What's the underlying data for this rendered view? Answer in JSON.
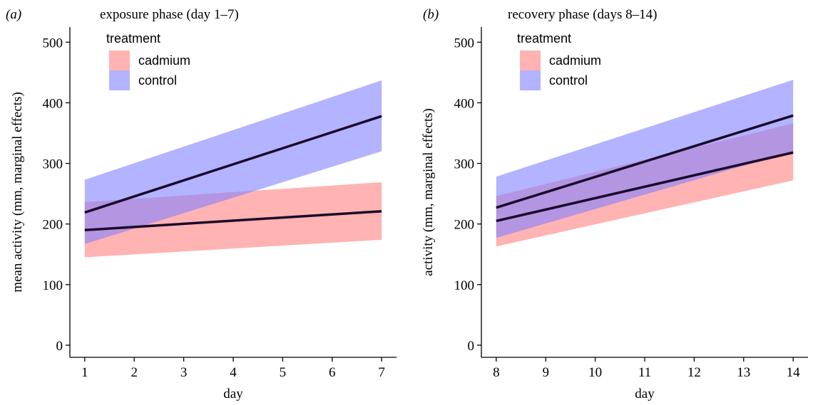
{
  "colors": {
    "cadmium_band": "#ff8080",
    "control_band": "#8080ff",
    "line": "#1a0a2a",
    "axis": "#000000"
  },
  "chart_data": [
    {
      "type": "line",
      "panel_letter": "(a)",
      "title": "exposure phase (day 1–7)",
      "xlabel": "day",
      "ylabel": "mean activity (mm, marginal effects)",
      "xlim": [
        0.7,
        7.3
      ],
      "ylim": [
        -20,
        525
      ],
      "x_ticks": [
        1,
        2,
        3,
        4,
        5,
        6,
        7
      ],
      "y_ticks": [
        0,
        100,
        200,
        300,
        400,
        500
      ],
      "grid": false,
      "legend": {
        "title": "treatment",
        "placement": "top-left"
      },
      "series": [
        {
          "name": "cadmium",
          "color": "#ff8080",
          "x": [
            1,
            7
          ],
          "y": [
            190,
            221
          ],
          "lower": [
            145,
            174
          ],
          "upper": [
            236,
            269
          ]
        },
        {
          "name": "control",
          "color": "#8080ff",
          "x": [
            1,
            7
          ],
          "y": [
            219,
            378
          ],
          "lower": [
            167,
            320
          ],
          "upper": [
            273,
            437
          ]
        }
      ]
    },
    {
      "type": "line",
      "panel_letter": "(b)",
      "title": "recovery phase (days 8–14)",
      "xlabel": "day",
      "ylabel": "activity (mm, marginal effects)",
      "xlim": [
        7.7,
        14.3
      ],
      "ylim": [
        -20,
        525
      ],
      "x_ticks": [
        8,
        9,
        10,
        11,
        12,
        13,
        14
      ],
      "y_ticks": [
        0,
        100,
        200,
        300,
        400,
        500
      ],
      "grid": false,
      "legend": {
        "title": "treatment",
        "placement": "top-left"
      },
      "series": [
        {
          "name": "cadmium",
          "color": "#ff8080",
          "x": [
            8,
            14
          ],
          "y": [
            205,
            318
          ],
          "lower": [
            163,
            272
          ],
          "upper": [
            246,
            366
          ]
        },
        {
          "name": "control",
          "color": "#8080ff",
          "x": [
            8,
            14
          ],
          "y": [
            227,
            379
          ],
          "lower": [
            177,
            320
          ],
          "upper": [
            278,
            438
          ]
        }
      ]
    }
  ]
}
